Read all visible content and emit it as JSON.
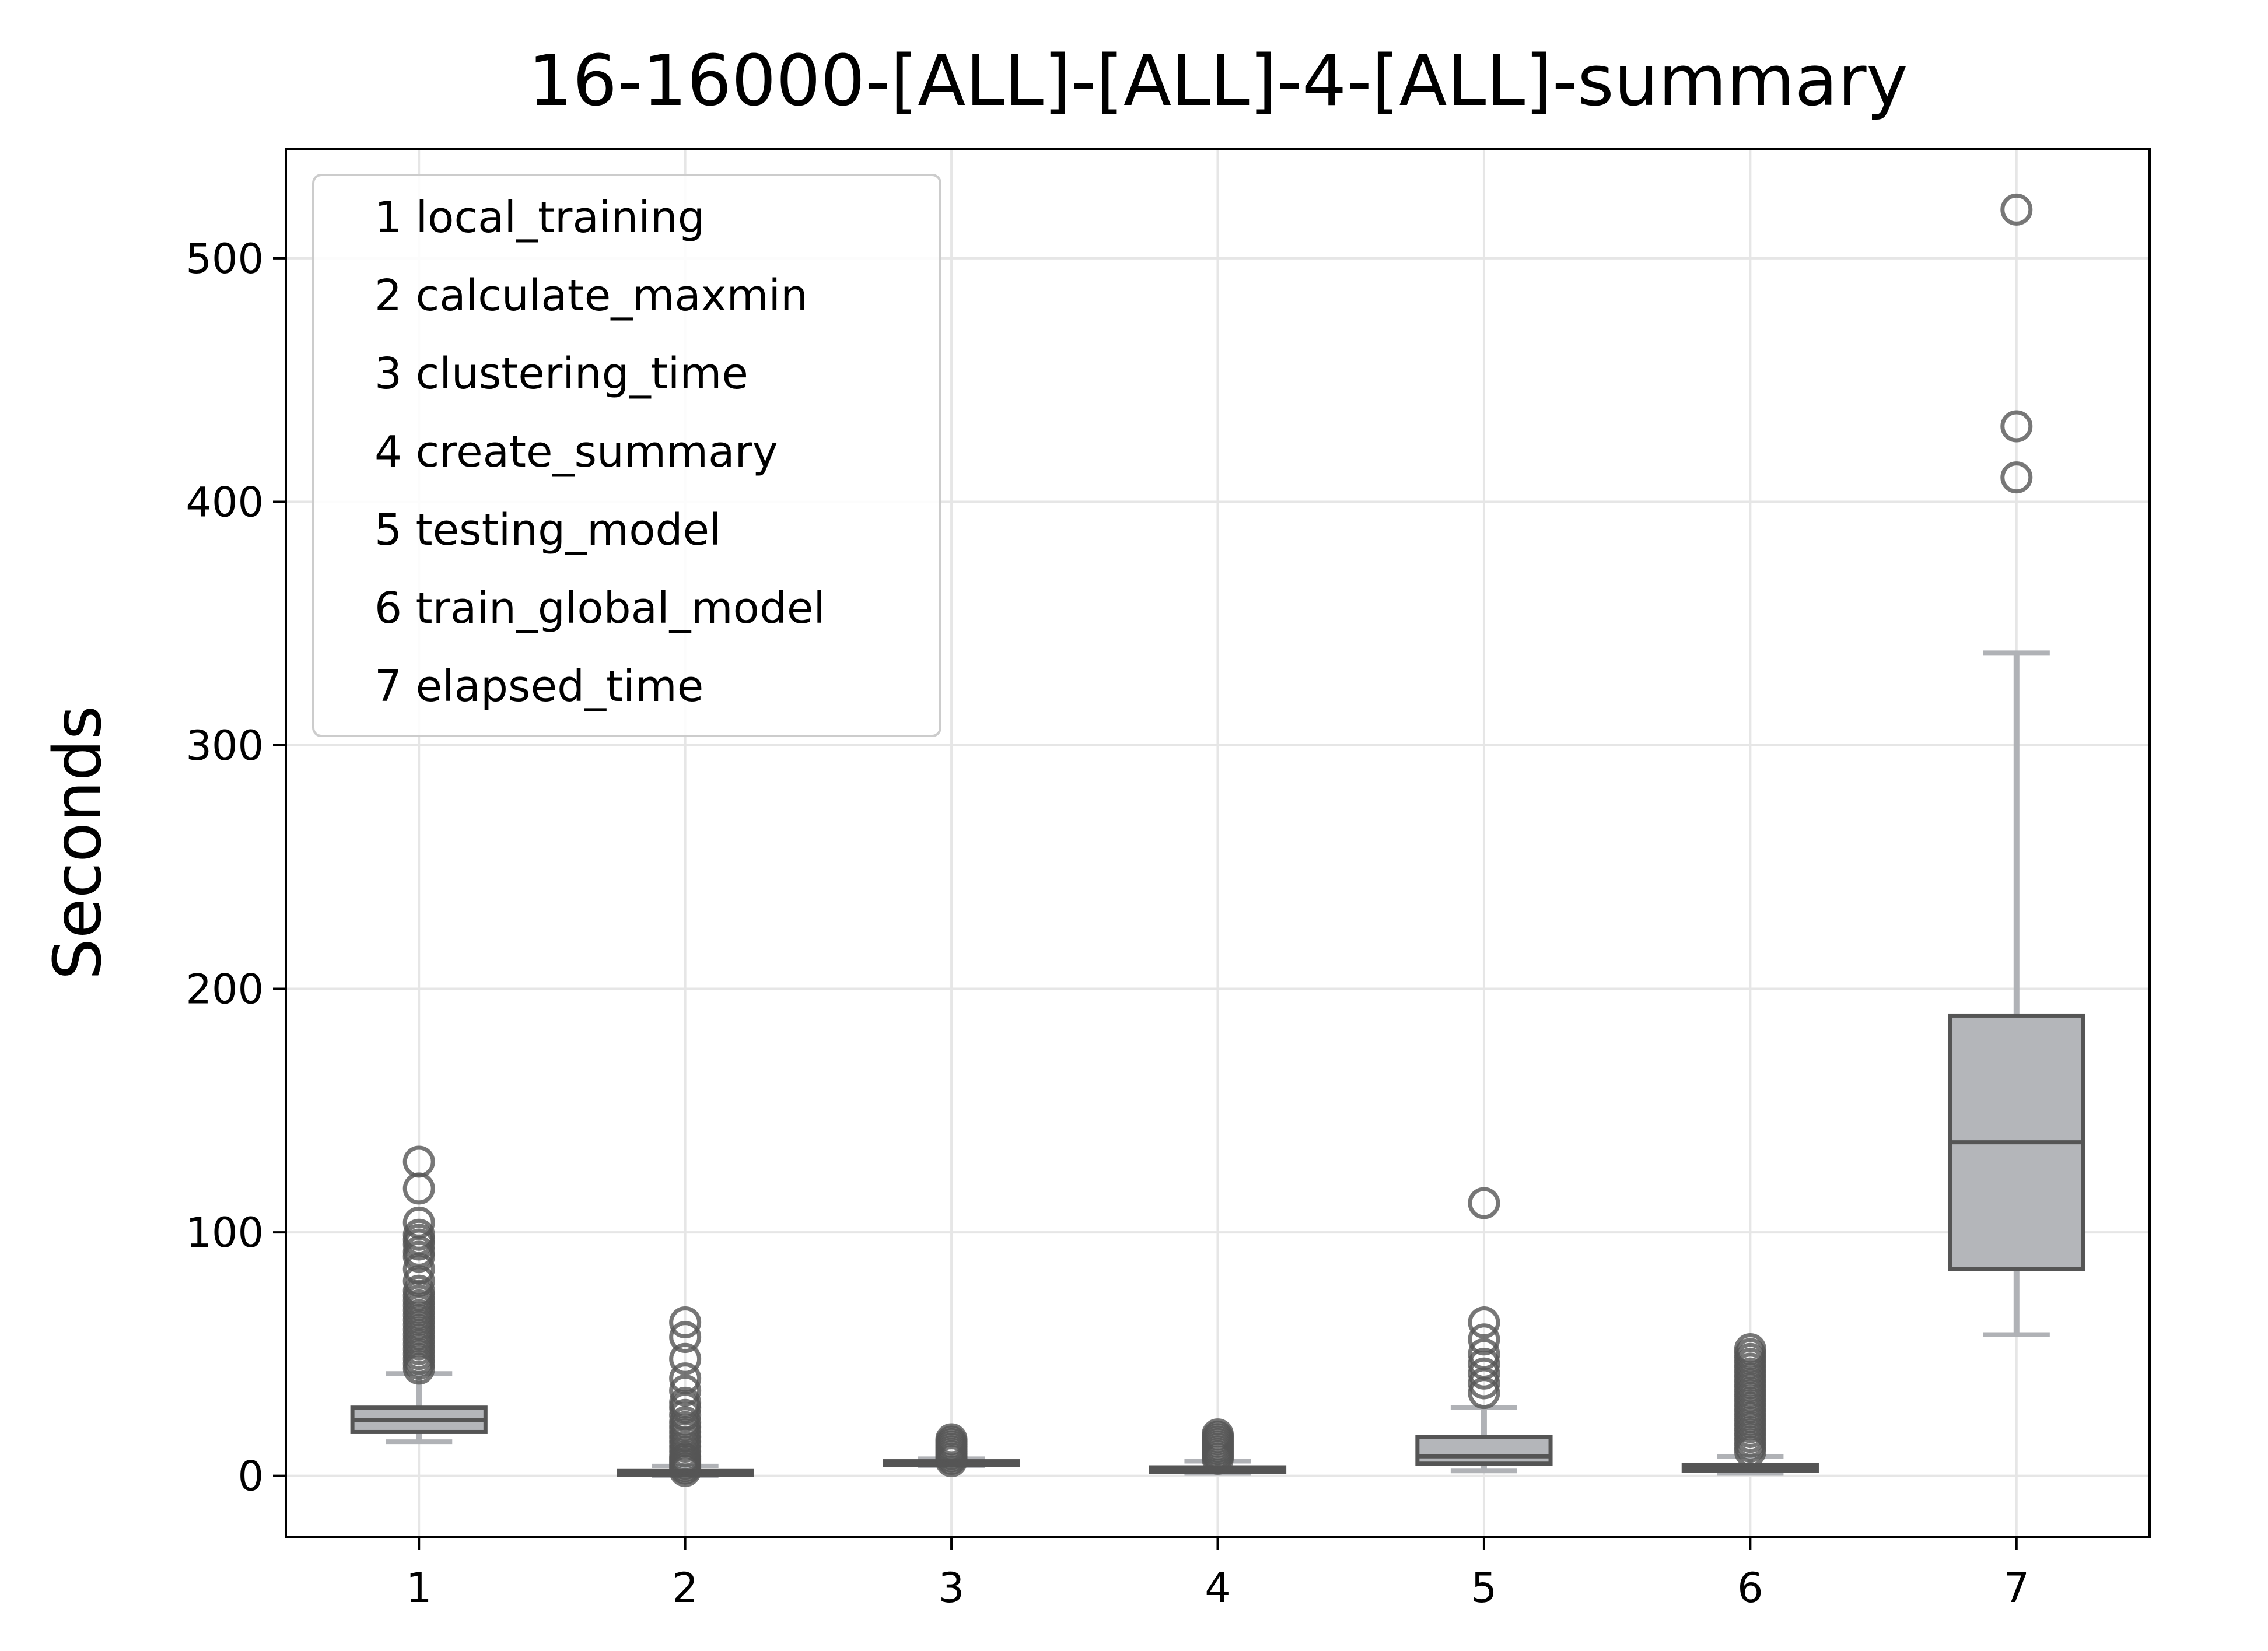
{
  "chart_data": {
    "type": "box",
    "title": "16-16000-[ALL]-[ALL]-4-[ALL]-summary",
    "xlabel": "",
    "ylabel": "Seconds",
    "ylim": [
      -25,
      545
    ],
    "xlim": [
      0.5,
      7.5
    ],
    "categories": [
      "1",
      "2",
      "3",
      "4",
      "5",
      "6",
      "7"
    ],
    "y_ticks": [
      0,
      100,
      200,
      300,
      400,
      500
    ],
    "y_tick_labels": [
      "0",
      "100",
      "200",
      "300",
      "400",
      "500"
    ],
    "grid": true,
    "legend_position": "upper-left",
    "legend": [
      "1 local_training",
      "2 calculate_maxmin",
      "3 clustering_time",
      "4 create_summary",
      "5 testing_model",
      "6 train_global_model",
      "7 elapsed_time"
    ],
    "colors": {
      "box_fill": "#b4b6ba",
      "box_edge": "#555555",
      "whisker": "#b0b2b6",
      "outlier": "#555555",
      "grid": "#e6e6e6"
    },
    "boxes": [
      {
        "x": 1,
        "q1": 18,
        "median": 23,
        "q3": 28,
        "whislo": 14,
        "whishi": 42,
        "fliers": [
          44,
          46,
          48,
          50,
          52,
          54,
          56,
          58,
          60,
          62,
          64,
          66,
          68,
          70,
          72,
          74,
          76,
          80,
          85,
          90,
          92,
          95,
          97,
          99,
          104,
          118,
          129
        ]
      },
      {
        "x": 2,
        "q1": 0.5,
        "median": 1,
        "q3": 2,
        "whislo": 0,
        "whishi": 4,
        "fliers": [
          2,
          3,
          4,
          5,
          6,
          7,
          8,
          10,
          12,
          14,
          16,
          18,
          20,
          22,
          25,
          28,
          30,
          35,
          40,
          48,
          57,
          63
        ]
      },
      {
        "x": 3,
        "q1": 4.5,
        "median": 5,
        "q3": 6,
        "whislo": 4,
        "whishi": 7,
        "fliers": [
          6,
          7,
          8,
          9,
          10,
          11,
          12,
          13,
          14,
          15
        ]
      },
      {
        "x": 4,
        "q1": 1.5,
        "median": 2.5,
        "q3": 3.5,
        "whislo": 1,
        "whishi": 6,
        "fliers": [
          7,
          8,
          9,
          10,
          11,
          12,
          13,
          14,
          15,
          16,
          17
        ]
      },
      {
        "x": 5,
        "q1": 5,
        "median": 8,
        "q3": 16,
        "whislo": 2,
        "whishi": 28,
        "fliers": [
          34,
          38,
          42,
          46,
          50,
          56,
          63,
          112
        ]
      },
      {
        "x": 6,
        "q1": 2,
        "median": 3,
        "q3": 4.5,
        "whislo": 1,
        "whishi": 8,
        "fliers": [
          10,
          12,
          14,
          16,
          18,
          20,
          22,
          24,
          26,
          28,
          30,
          32,
          34,
          36,
          38,
          40,
          42,
          44,
          46,
          48,
          50,
          52
        ]
      },
      {
        "x": 7,
        "q1": 85,
        "median": 137,
        "q3": 189,
        "whislo": 58,
        "whishi": 338,
        "fliers": [
          410,
          431,
          520
        ]
      }
    ]
  }
}
